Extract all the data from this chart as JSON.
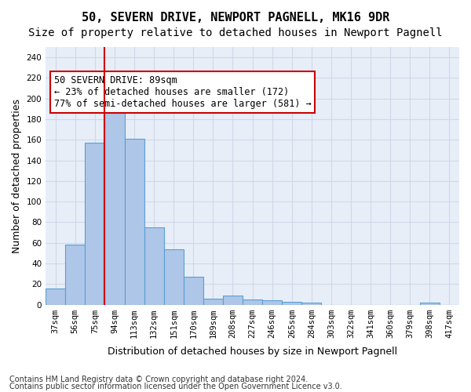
{
  "title": "50, SEVERN DRIVE, NEWPORT PAGNELL, MK16 9DR",
  "subtitle": "Size of property relative to detached houses in Newport Pagnell",
  "xlabel": "Distribution of detached houses by size in Newport Pagnell",
  "ylabel": "Number of detached properties",
  "bins": [
    "37sqm",
    "56sqm",
    "75sqm",
    "94sqm",
    "113sqm",
    "132sqm",
    "151sqm",
    "170sqm",
    "189sqm",
    "208sqm",
    "227sqm",
    "246sqm",
    "265sqm",
    "284sqm",
    "303sqm",
    "322sqm",
    "341sqm",
    "360sqm",
    "379sqm",
    "398sqm",
    "417sqm"
  ],
  "values": [
    16,
    58,
    157,
    186,
    161,
    75,
    54,
    27,
    6,
    9,
    5,
    4,
    3,
    2,
    0,
    0,
    0,
    0,
    0,
    2,
    0
  ],
  "bar_color": "#aec6e8",
  "bar_edge_color": "#5a9fd4",
  "vline_color": "#cc0000",
  "vline_pos": 2.5,
  "annotation_line1": "50 SEVERN DRIVE: 89sqm",
  "annotation_line2": "← 23% of detached houses are smaller (172)",
  "annotation_line3": "77% of semi-detached houses are larger (581) →",
  "annotation_box_color": "#cc0000",
  "annotation_box_fill": "#ffffff",
  "ylim": [
    0,
    250
  ],
  "yticks": [
    0,
    20,
    40,
    60,
    80,
    100,
    120,
    140,
    160,
    180,
    200,
    220,
    240
  ],
  "grid_color": "#d0d8e8",
  "background_color": "#e8eef8",
  "footer_line1": "Contains HM Land Registry data © Crown copyright and database right 2024.",
  "footer_line2": "Contains public sector information licensed under the Open Government Licence v3.0.",
  "title_fontsize": 11,
  "subtitle_fontsize": 10,
  "xlabel_fontsize": 9,
  "ylabel_fontsize": 9,
  "tick_fontsize": 7.5,
  "annotation_fontsize": 8.5,
  "footer_fontsize": 7
}
